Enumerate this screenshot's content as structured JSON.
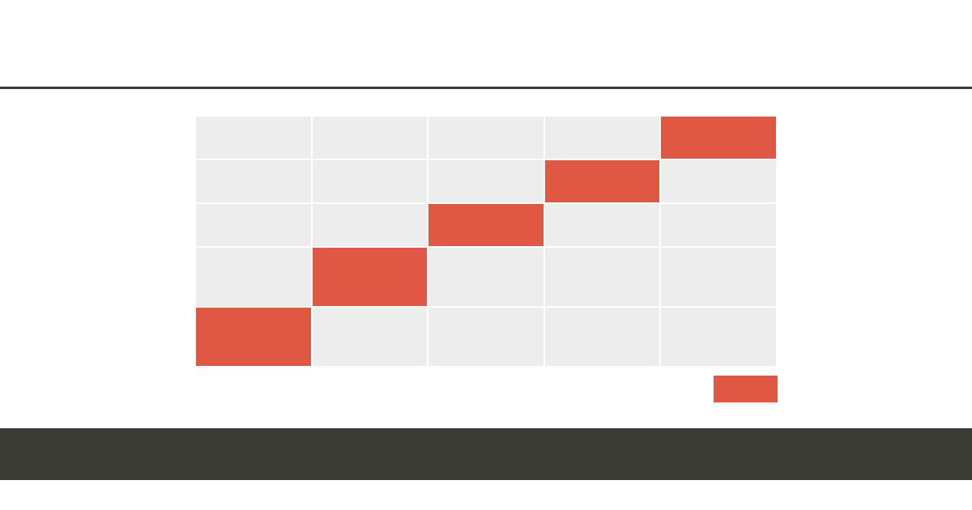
{
  "colors": {
    "accent": "#e05844",
    "cell_empty": "#ededed",
    "rule": "#3a3a38",
    "footer": "#3c3c36"
  },
  "grid": {
    "rows": 5,
    "cols": 5,
    "filled_cells": [
      {
        "row": 0,
        "col": 4
      },
      {
        "row": 1,
        "col": 3
      },
      {
        "row": 2,
        "col": 2
      },
      {
        "row": 3,
        "col": 1
      },
      {
        "row": 4,
        "col": 0
      }
    ]
  }
}
